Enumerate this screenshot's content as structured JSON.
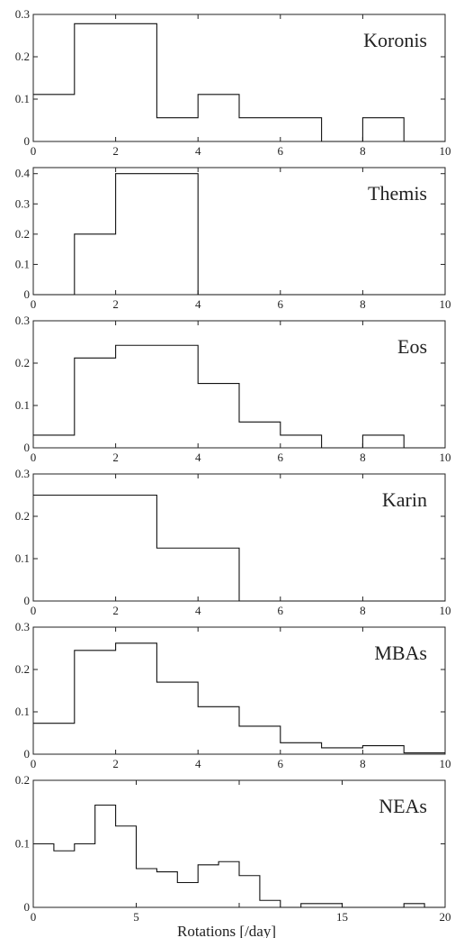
{
  "chart_data": [
    {
      "type": "histogram",
      "title": "Koronis",
      "xlim": [
        0,
        10
      ],
      "ylim": [
        0,
        0.3
      ],
      "xticks": [
        "0",
        "2",
        "4",
        "6",
        "8",
        "10"
      ],
      "yticks": [
        "0",
        "0.1",
        "0.2",
        "0.3"
      ],
      "bin_edges": [
        0,
        1,
        2,
        3,
        4,
        5,
        6,
        7,
        8,
        9,
        10
      ],
      "values": [
        0.111,
        0.278,
        0.278,
        0.056,
        0.111,
        0.056,
        0.056,
        0.0,
        0.056,
        0.0
      ]
    },
    {
      "type": "histogram",
      "title": "Themis",
      "xlim": [
        0,
        10
      ],
      "ylim": [
        0,
        0.42
      ],
      "xticks": [
        "0",
        "2",
        "4",
        "6",
        "8",
        "10"
      ],
      "yticks": [
        "0",
        "0.1",
        "0.2",
        "0.3",
        "0.4"
      ],
      "bin_edges": [
        0,
        1,
        2,
        3,
        4,
        5,
        6,
        7,
        8,
        9,
        10
      ],
      "values": [
        0.0,
        0.2,
        0.4,
        0.4,
        0.0,
        0.0,
        0.0,
        0.0,
        0.0,
        0.0
      ]
    },
    {
      "type": "histogram",
      "title": "Eos",
      "xlim": [
        0,
        10
      ],
      "ylim": [
        0,
        0.3
      ],
      "xticks": [
        "0",
        "2",
        "4",
        "6",
        "8",
        "10"
      ],
      "yticks": [
        "0",
        "0.1",
        "0.2",
        "0.3"
      ],
      "bin_edges": [
        0,
        1,
        2,
        3,
        4,
        5,
        6,
        7,
        8,
        9,
        10
      ],
      "values": [
        0.03,
        0.212,
        0.242,
        0.242,
        0.152,
        0.061,
        0.03,
        0.0,
        0.03,
        0.0
      ]
    },
    {
      "type": "histogram",
      "title": "Karin",
      "xlim": [
        0,
        10
      ],
      "ylim": [
        0,
        0.3
      ],
      "xticks": [
        "0",
        "2",
        "4",
        "6",
        "8",
        "10"
      ],
      "yticks": [
        "0",
        "0.1",
        "0.2",
        "0.3"
      ],
      "bin_edges": [
        0,
        1,
        2,
        3,
        4,
        5,
        6,
        7,
        8,
        9,
        10
      ],
      "values": [
        0.25,
        0.25,
        0.25,
        0.125,
        0.125,
        0.0,
        0.0,
        0.0,
        0.0,
        0.0
      ]
    },
    {
      "type": "histogram",
      "title": "MBAs",
      "xlim": [
        0,
        10
      ],
      "ylim": [
        0,
        0.3
      ],
      "xticks": [
        "0",
        "2",
        "4",
        "6",
        "8",
        "10"
      ],
      "yticks": [
        "0",
        "0.1",
        "0.2",
        "0.3"
      ],
      "bin_edges": [
        0,
        1,
        2,
        3,
        4,
        5,
        6,
        7,
        8,
        9,
        10
      ],
      "values": [
        0.073,
        0.245,
        0.262,
        0.17,
        0.112,
        0.066,
        0.027,
        0.015,
        0.02,
        0.003
      ]
    },
    {
      "type": "histogram",
      "title": "NEAs",
      "xlabel": "Rotations [/day]",
      "xlim": [
        0,
        20
      ],
      "ylim": [
        0,
        0.2
      ],
      "xticks": [
        "0",
        "5",
        "",
        "15",
        "20"
      ],
      "yticks": [
        "0",
        "0.1",
        "0.2"
      ],
      "bin_edges": [
        0,
        1,
        2,
        3,
        4,
        5,
        6,
        7,
        8,
        9,
        10,
        11,
        12,
        13,
        14,
        15,
        16,
        17,
        18,
        19,
        20
      ],
      "values": [
        0.1,
        0.089,
        0.1,
        0.161,
        0.128,
        0.061,
        0.056,
        0.039,
        0.067,
        0.072,
        0.05,
        0.011,
        0.0,
        0.006,
        0.006,
        0.0,
        0.0,
        0.0,
        0.006,
        0.0
      ]
    }
  ]
}
